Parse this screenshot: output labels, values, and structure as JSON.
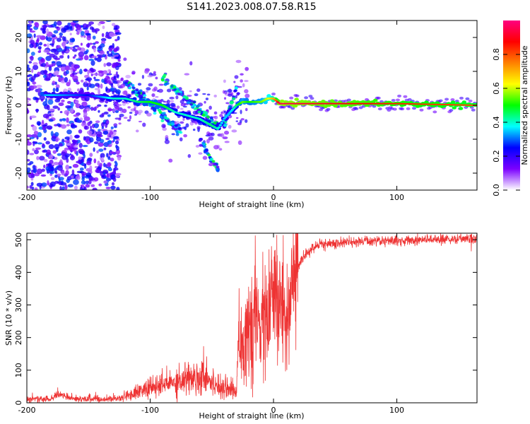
{
  "title": "S141.2023.008.07.58.R15",
  "chart_data": [
    {
      "type": "heatmap",
      "title": "",
      "xlabel": "Height of straight line (km)",
      "ylabel": "Frequency (Hz)",
      "xlim": [
        -200,
        165
      ],
      "ylim": [
        -25,
        25
      ],
      "x_ticks": [
        -200,
        -100,
        0,
        100
      ],
      "y_ticks": [
        -20,
        -10,
        0,
        10,
        20
      ],
      "colorbar": {
        "label": "Normalized spectral amplitude",
        "range": [
          0.0,
          1.0
        ],
        "ticks": [
          "0.0",
          "0.2",
          "0.4",
          "0.6",
          "0.8"
        ],
        "colors": [
          "#ffffff",
          "#7b00ff",
          "#0000ff",
          "#00ffff",
          "#00ff00",
          "#ffff00",
          "#ff8000",
          "#ff0000",
          "#ff0080"
        ]
      },
      "ridge": {
        "x": [
          -200,
          -180,
          -165,
          -150,
          -130,
          -120,
          -110,
          -100,
          -90,
          -80,
          -70,
          -60,
          -50,
          -45,
          -40,
          -35,
          -30,
          -25,
          -20,
          -10,
          -5,
          0,
          5,
          50,
          100,
          165
        ],
        "frequency": [
          3,
          3,
          3,
          3,
          2,
          2,
          1,
          1,
          0,
          -2,
          -3,
          -4,
          -6,
          -7,
          -4,
          -2,
          0,
          1,
          1,
          1,
          2,
          2,
          0.5,
          0.5,
          0.5,
          0
        ],
        "amplitude": [
          0.3,
          0.35,
          0.3,
          0.25,
          0.4,
          0.4,
          0.45,
          0.5,
          0.5,
          0.4,
          0.4,
          0.4,
          0.45,
          0.4,
          0.35,
          0.35,
          0.45,
          0.55,
          0.5,
          0.55,
          0.6,
          0.7,
          0.95,
          0.9,
          0.85,
          0.8
        ]
      }
    },
    {
      "type": "line",
      "title": "",
      "xlabel": "Height of straight line (km)",
      "ylabel": "SNR (10 * v/v)",
      "xlim": [
        -200,
        165
      ],
      "ylim": [
        0,
        520
      ],
      "x_ticks": [
        -200,
        -100,
        0,
        100
      ],
      "y_ticks": [
        0,
        100,
        200,
        300,
        400,
        500
      ],
      "color": "#ee3333",
      "series": [
        {
          "x": [
            -200,
            -180,
            -175,
            -160,
            -140,
            -130,
            -120,
            -110,
            -100,
            -90,
            -80,
            -70,
            -60,
            -55,
            -50,
            -40,
            -35,
            -30,
            -28,
            -25,
            -20,
            -15,
            -10,
            -5,
            0,
            5,
            10,
            15,
            20,
            25,
            30,
            40,
            60,
            80,
            100,
            120,
            140,
            165
          ],
          "values": [
            10,
            12,
            25,
            12,
            10,
            12,
            18,
            35,
            45,
            55,
            65,
            75,
            80,
            90,
            60,
            50,
            45,
            30,
            260,
            180,
            200,
            250,
            240,
            260,
            320,
            300,
            280,
            340,
            420,
            450,
            470,
            485,
            492,
            495,
            497,
            500,
            502,
            503
          ]
        }
      ]
    }
  ]
}
